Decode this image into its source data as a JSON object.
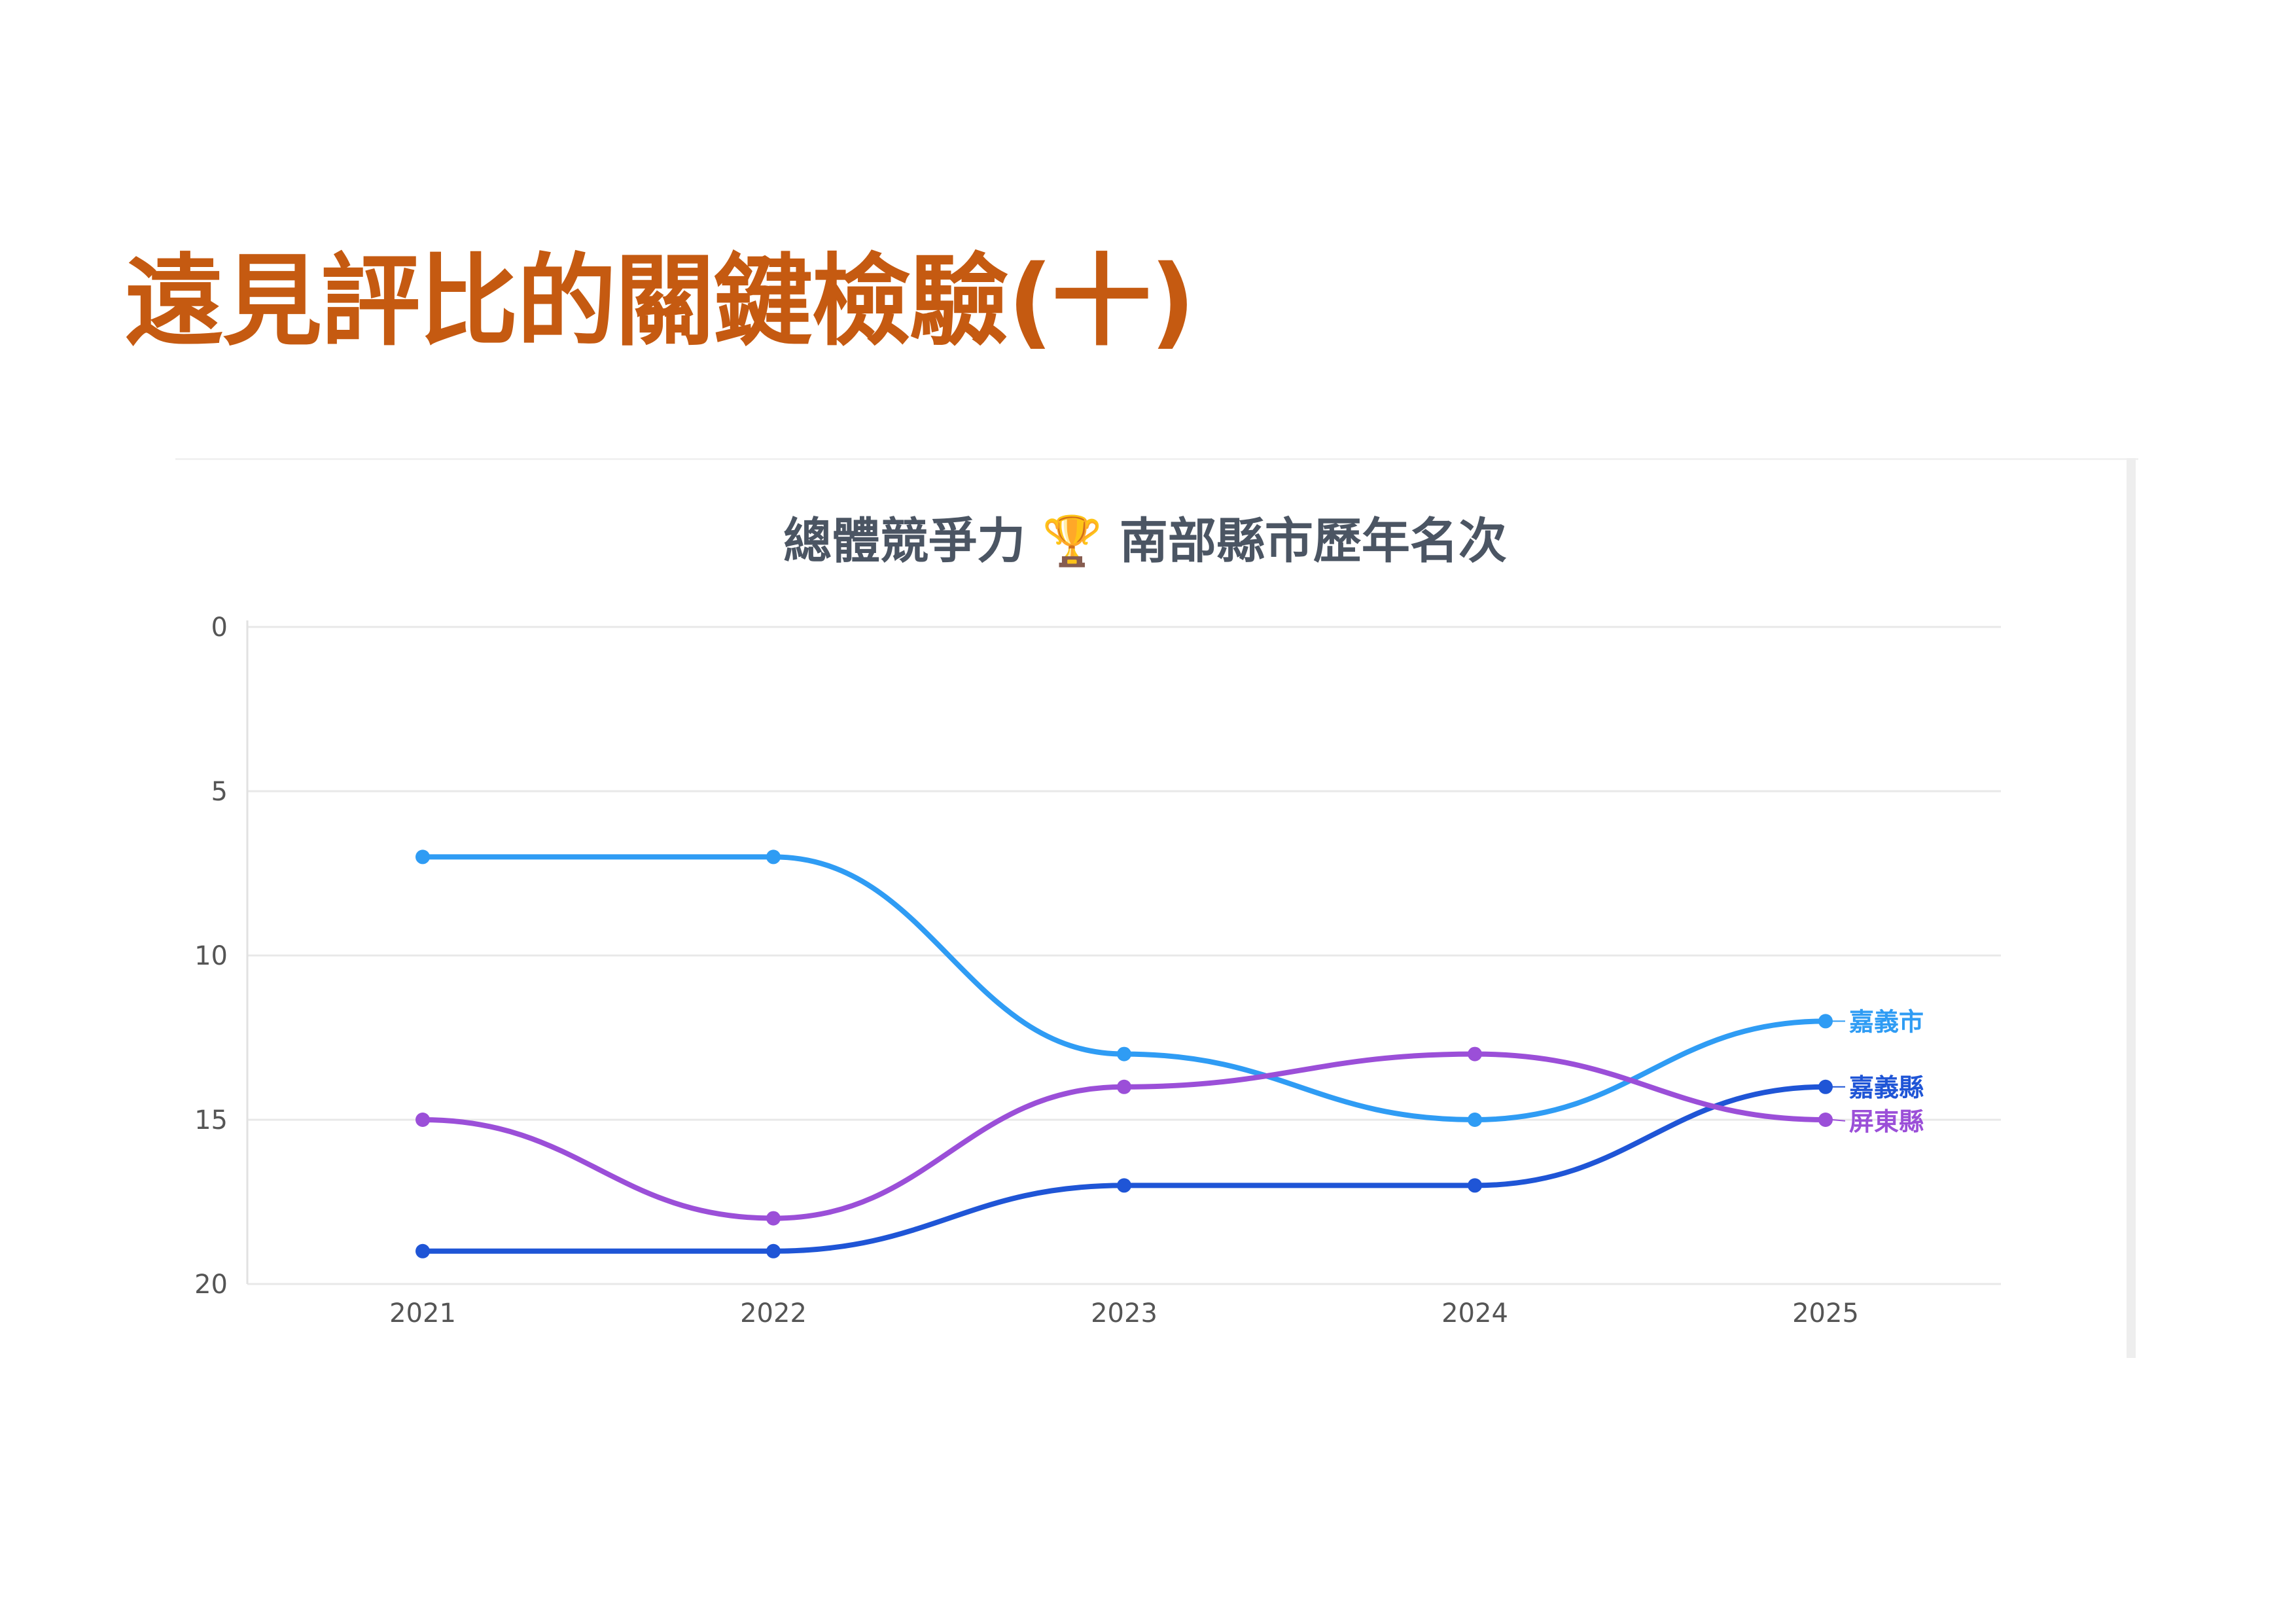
{
  "slide": {
    "title": "遠見評比的關鍵檢驗(十)",
    "title_color": "#c55a11"
  },
  "chart_data": {
    "type": "line",
    "title": "總體競爭力 🏆 南部縣市歷年名次",
    "x": [
      "2021",
      "2022",
      "2023",
      "2024",
      "2025"
    ],
    "ylim": [
      0,
      20
    ],
    "y_inverted": true,
    "yticks": [
      0,
      5,
      10,
      15,
      20
    ],
    "grid": true,
    "legend": "end-of-line labels",
    "series": [
      {
        "name": "嘉義市",
        "color": "#2f9cf4",
        "values": [
          7,
          7,
          13,
          15,
          12
        ]
      },
      {
        "name": "嘉義縣",
        "color": "#1f55d6",
        "values": [
          19,
          19,
          17,
          17,
          14
        ]
      },
      {
        "name": "屏東縣",
        "color": "#9b4fd8",
        "values": [
          15,
          18,
          14,
          13,
          15
        ]
      }
    ]
  }
}
